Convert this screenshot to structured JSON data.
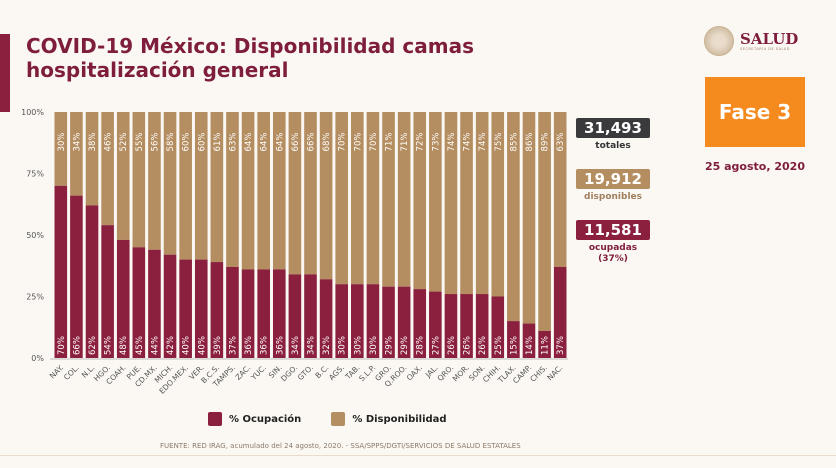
{
  "title": "COVID-19 México: Disponibilidad camas hospitalización general",
  "logo": {
    "name": "SALUD",
    "subtitle": "SECRETARÍA DE SALUD"
  },
  "phase": "Fase 3",
  "date": "25 agosto, 2020",
  "stats": {
    "total": {
      "value": "31,493",
      "label": "totales",
      "color": "#3a3a3c"
    },
    "available": {
      "value": "19,912",
      "label": "disponibles",
      "color": "#b48d60"
    },
    "occupied": {
      "value": "11,581",
      "label": "ocupadas (37%)",
      "color": "#8a1f3e"
    }
  },
  "footer": "FUENTE: RED IRAG, acumulado del 24 agosto, 2020. -  SSA/SPPS/DGTI/SERVICIOS DE SALUD ESTATALES",
  "chart_data": {
    "type": "bar",
    "stacked": true,
    "categories": [
      "NAY.",
      "COL.",
      "N.L.",
      "HGO.",
      "COAH.",
      "PUE.",
      "CD.MX.",
      "MICH.",
      "EDO.MEX.",
      "VER.",
      "B.C.S.",
      "TAMPS.",
      "ZAC.",
      "YUC.",
      "SIN.",
      "DGO.",
      "GTO.",
      "B.C.",
      "AGS.",
      "TAB.",
      "S.L.P.",
      "GRO.",
      "Q.ROO.",
      "OAX.",
      "JAL.",
      "QRO.",
      "MOR.",
      "SON.",
      "CHIH.",
      "TLAX.",
      "CAMP.",
      "CHIS.",
      "NAC."
    ],
    "series": [
      {
        "name": "% Ocupación",
        "color": "#8a1f3e",
        "values": [
          70,
          66,
          62,
          54,
          48,
          45,
          44,
          42,
          40,
          40,
          39,
          37,
          36,
          36,
          36,
          34,
          34,
          32,
          30,
          30,
          30,
          29,
          29,
          28,
          27,
          26,
          26,
          26,
          25,
          15,
          14,
          11,
          37
        ]
      },
      {
        "name": "% Disponibilidad",
        "color": "#b48d60",
        "values": [
          30,
          34,
          38,
          46,
          52,
          55,
          56,
          58,
          60,
          60,
          61,
          63,
          64,
          64,
          64,
          66,
          66,
          68,
          70,
          70,
          70,
          71,
          71,
          72,
          73,
          74,
          74,
          74,
          75,
          85,
          86,
          89,
          63
        ]
      }
    ],
    "yticks": [
      "0%",
      "25%",
      "50%",
      "75%",
      "100%"
    ],
    "ylim": [
      0,
      100
    ],
    "legend": "bottom"
  }
}
